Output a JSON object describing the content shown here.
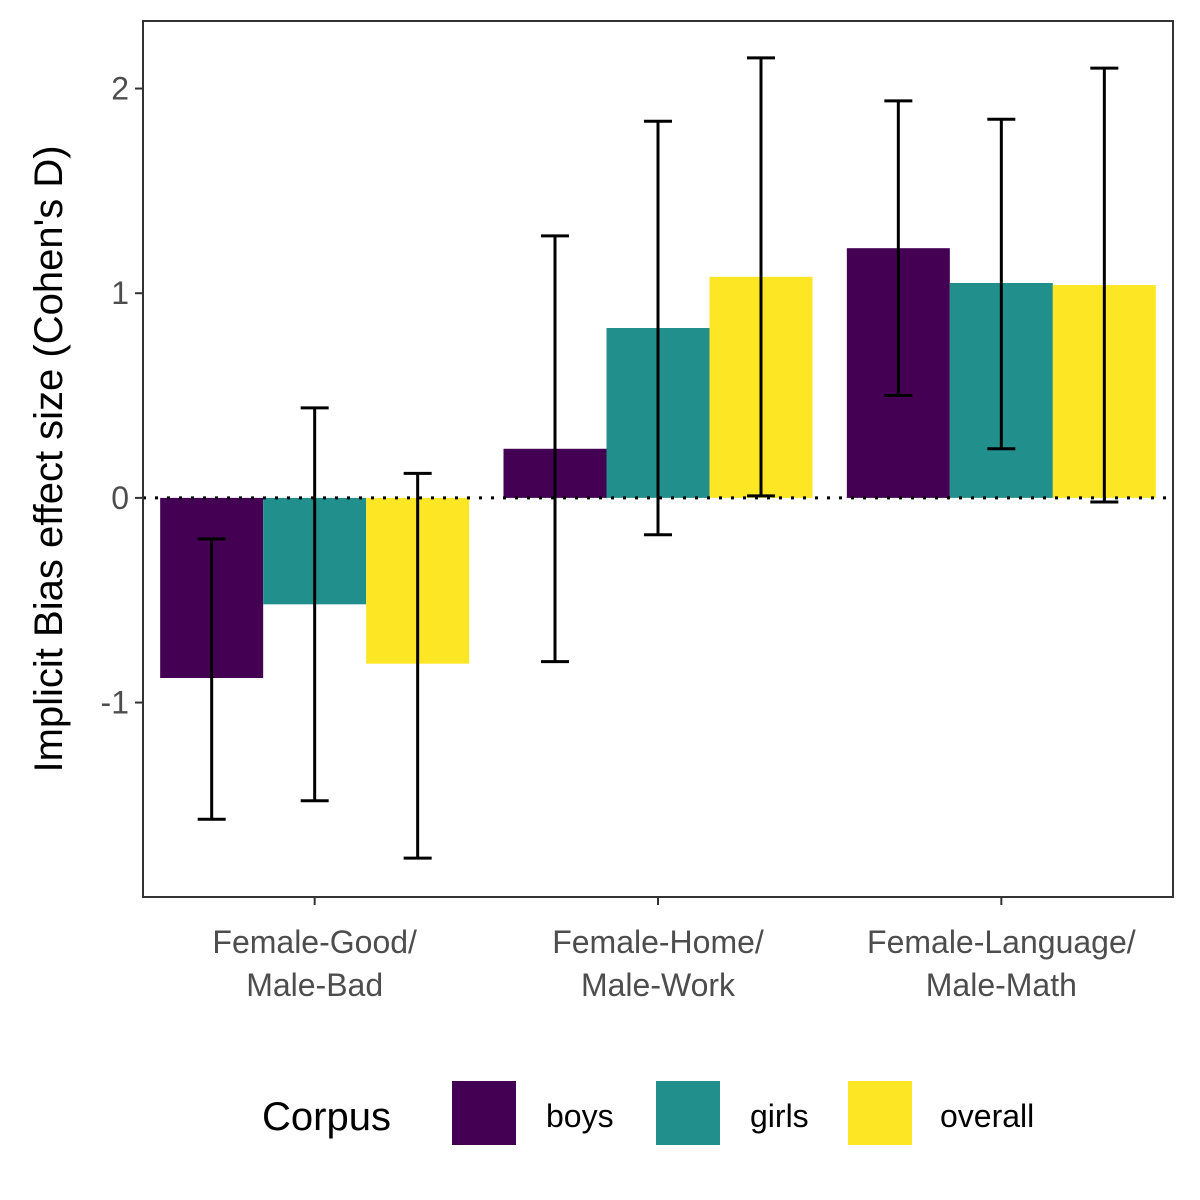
{
  "chart_data": {
    "type": "bar",
    "title": "",
    "xlabel": "",
    "ylabel": "Implicit Bias effect size (Cohen's D)",
    "categories": [
      [
        "Female-Good/",
        "Male-Bad"
      ],
      [
        "Female-Home/",
        "Male-Work"
      ],
      [
        "Female-Language/",
        "Male-Math"
      ]
    ],
    "series": [
      {
        "name": "boys",
        "color": "#440154",
        "values": [
          -0.88,
          0.24,
          1.22
        ],
        "err_low": [
          -1.57,
          -0.8,
          0.5
        ],
        "err_high": [
          -0.2,
          1.28,
          1.94
        ]
      },
      {
        "name": "girls",
        "color": "#21908C",
        "values": [
          -0.52,
          0.83,
          1.05
        ],
        "err_low": [
          -1.48,
          -0.18,
          0.24
        ],
        "err_high": [
          0.44,
          1.84,
          1.85
        ]
      },
      {
        "name": "overall",
        "color": "#FDE725",
        "values": [
          -0.81,
          1.08,
          1.04
        ],
        "err_low": [
          -1.76,
          0.01,
          -0.02
        ],
        "err_high": [
          0.12,
          2.15,
          2.1
        ]
      }
    ],
    "ylim": [
      -1.95,
      2.33
    ],
    "yticks": [
      -1,
      0,
      1,
      2
    ],
    "reference_line": {
      "y": 0,
      "style": "dotted"
    },
    "grid": false,
    "legend": {
      "title": "Corpus",
      "position": "bottom"
    }
  }
}
